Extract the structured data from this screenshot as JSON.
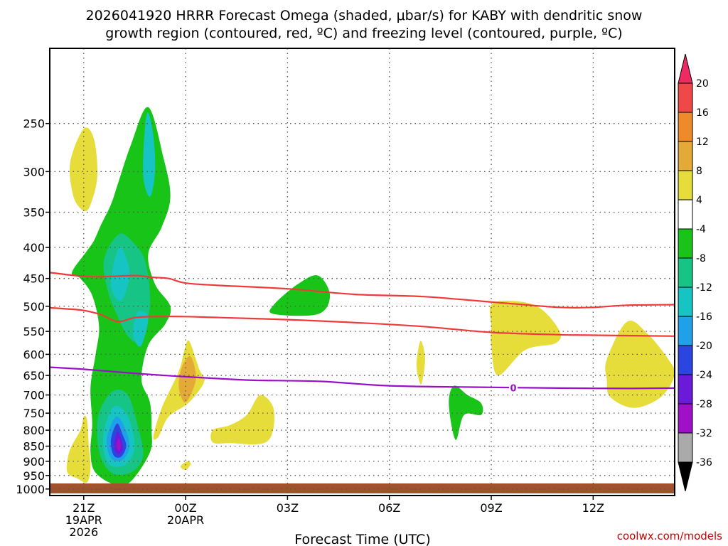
{
  "chart_data": {
    "type": "contour",
    "title_line1": "2026041920 HRRR Forecast Omega (shaded, μbar/s) for KABY with dendritic snow",
    "title_line2": "growth region (contoured, red, ºC) and freezing level (contoured, purple, ºC)",
    "xlabel": "Forecast Time (UTC)",
    "credit": "coolwx.com/models",
    "x_ticks": [
      {
        "hour": 1,
        "label": "21Z",
        "date": "19APR",
        "year": "2026"
      },
      {
        "hour": 4,
        "label": "00Z",
        "date": "20APR",
        "year": ""
      },
      {
        "hour": 7,
        "label": "03Z",
        "date": "",
        "year": ""
      },
      {
        "hour": 10,
        "label": "06Z",
        "date": "",
        "year": ""
      },
      {
        "hour": 13,
        "label": "09Z",
        "date": "",
        "year": ""
      },
      {
        "hour": 16,
        "label": "12Z",
        "date": "",
        "year": ""
      }
    ],
    "xlim": [
      0,
      18.4
    ],
    "y_ticks": [
      250,
      300,
      350,
      400,
      450,
      500,
      550,
      600,
      650,
      700,
      750,
      800,
      850,
      900,
      950,
      1000
    ],
    "ylim": [
      1025,
      188
    ],
    "colorbar": {
      "labels": [
        "20",
        "16",
        "12",
        "8",
        "4",
        "-4",
        "-8",
        "-12",
        "-16",
        "-20",
        "-24",
        "-28",
        "-32",
        "-36"
      ],
      "colors": [
        "#ee2a63",
        "#f04848",
        "#ee8a2a",
        "#e4aa38",
        "#e6dc3a",
        "#ffffff",
        "#17c417",
        "#16c486",
        "#16c4c4",
        "#1fa0e8",
        "#2a45e0",
        "#6a1ad8",
        "#a010c8",
        "#aaaaaa",
        "#000000"
      ]
    },
    "contour_lines": [
      {
        "name": "dendritic-top -12C",
        "color": "#f03a3a",
        "points": [
          [
            0,
            440
          ],
          [
            1.2,
            447
          ],
          [
            2.5,
            445
          ],
          [
            3,
            448
          ],
          [
            3.5,
            450
          ],
          [
            4,
            458
          ],
          [
            5,
            462
          ],
          [
            7,
            468
          ],
          [
            9,
            478
          ],
          [
            11,
            482
          ],
          [
            13,
            492
          ],
          [
            15,
            502
          ],
          [
            16,
            502
          ],
          [
            17,
            498
          ],
          [
            18.4,
            497
          ]
        ]
      },
      {
        "name": "dendritic-bottom -18C",
        "color": "#f03a3a",
        "points": [
          [
            0,
            503
          ],
          [
            0.5,
            505
          ],
          [
            1,
            508
          ],
          [
            1.5,
            516
          ],
          [
            2,
            530
          ],
          [
            2.5,
            522
          ],
          [
            3,
            520
          ],
          [
            4,
            520
          ],
          [
            5,
            522
          ],
          [
            7,
            526
          ],
          [
            9,
            532
          ],
          [
            11,
            540
          ],
          [
            13,
            552
          ],
          [
            15,
            557
          ],
          [
            16,
            558
          ],
          [
            18.4,
            560
          ]
        ]
      },
      {
        "name": "freezing-level 0C",
        "color": "#9a10c8",
        "label": "0",
        "points": [
          [
            0,
            630
          ],
          [
            1,
            635
          ],
          [
            3,
            648
          ],
          [
            5,
            658
          ],
          [
            6,
            662
          ],
          [
            8,
            665
          ],
          [
            10,
            676
          ],
          [
            13,
            680
          ],
          [
            14,
            681
          ],
          [
            15,
            682
          ],
          [
            17,
            683
          ],
          [
            18.4,
            682
          ]
        ]
      }
    ],
    "omega_regions": [
      {
        "value": 4,
        "color": "#e6dc3a",
        "points": [
          [
            0.6,
            290
          ],
          [
            1,
            255
          ],
          [
            1.3,
            265
          ],
          [
            1.4,
            305
          ],
          [
            1.2,
            340
          ],
          [
            1,
            348
          ],
          [
            0.7,
            330
          ]
        ]
      },
      {
        "value": 4,
        "color": "#e6dc3a",
        "points": [
          [
            0.5,
            915
          ],
          [
            0.6,
            860
          ],
          [
            0.9,
            800
          ],
          [
            1,
            760
          ],
          [
            1.1,
            770
          ],
          [
            1.15,
            850
          ],
          [
            1.2,
            920
          ],
          [
            1.1,
            975
          ],
          [
            0.8,
            960
          ],
          [
            0.55,
            945
          ]
        ]
      },
      {
        "value": 4,
        "color": "#e6dc3a",
        "points": [
          [
            3.05,
            820
          ],
          [
            3.3,
            735
          ],
          [
            3.8,
            640
          ],
          [
            3.95,
            595
          ],
          [
            4.1,
            570
          ],
          [
            4.4,
            635
          ],
          [
            4.55,
            665
          ],
          [
            4.1,
            720
          ],
          [
            3.5,
            760
          ],
          [
            3.2,
            820
          ]
        ]
      },
      {
        "value": 4,
        "color": "#e6dc3a",
        "points": [
          [
            3.85,
            918
          ],
          [
            4.05,
            900
          ],
          [
            4.15,
            910
          ],
          [
            4,
            930
          ]
        ]
      },
      {
        "value": 4,
        "color": "#e6dc3a",
        "points": [
          [
            4.8,
            800
          ],
          [
            5.3,
            785
          ],
          [
            5.8,
            755
          ],
          [
            6.2,
            700
          ],
          [
            6.6,
            742
          ],
          [
            6.4,
            835
          ],
          [
            5.3,
            840
          ],
          [
            4.8,
            838
          ]
        ]
      },
      {
        "value": 4,
        "color": "#e6dc3a",
        "points": [
          [
            10.8,
            618
          ],
          [
            10.92,
            570
          ],
          [
            11.05,
            610
          ],
          [
            10.95,
            670
          ],
          [
            10.85,
            655
          ]
        ]
      },
      {
        "value": 4,
        "color": "#e6dc3a",
        "points": [
          [
            13,
            497
          ],
          [
            13.6,
            490
          ],
          [
            14.4,
            502
          ],
          [
            15,
            548
          ],
          [
            14.9,
            575
          ],
          [
            14,
            590
          ],
          [
            13.2,
            650
          ],
          [
            13,
            580
          ],
          [
            13,
            540
          ]
        ]
      },
      {
        "value": 4,
        "color": "#e6dc3a",
        "points": [
          [
            16.4,
            612
          ],
          [
            17,
            530
          ],
          [
            17.6,
            555
          ],
          [
            18.2,
            610
          ],
          [
            18.4,
            648
          ],
          [
            18,
            705
          ],
          [
            17.2,
            735
          ],
          [
            16.5,
            705
          ],
          [
            16.4,
            660
          ]
        ]
      },
      {
        "value": 8,
        "color": "#e4aa38",
        "points": [
          [
            3.8,
            680
          ],
          [
            3.9,
            628
          ],
          [
            4.15,
            605
          ],
          [
            4.3,
            660
          ],
          [
            4,
            720
          ]
        ]
      },
      {
        "value": -4,
        "color": "#17c417",
        "points": [
          [
            0.65,
            440
          ],
          [
            1.1,
            405
          ],
          [
            1.3,
            390
          ],
          [
            1.5,
            368
          ],
          [
            1.8,
            340
          ],
          [
            2,
            315
          ],
          [
            2.4,
            270
          ],
          [
            2.9,
            235
          ],
          [
            3.35,
            285
          ],
          [
            3.55,
            330
          ],
          [
            3.3,
            370
          ],
          [
            2.9,
            410
          ],
          [
            3.1,
            460
          ],
          [
            3.55,
            500
          ],
          [
            3.4,
            535
          ],
          [
            2.9,
            580
          ],
          [
            2.7,
            660
          ],
          [
            2.95,
            720
          ],
          [
            3.0,
            800
          ],
          [
            2.95,
            870
          ],
          [
            2.4,
            970
          ],
          [
            1.95,
            985
          ],
          [
            1.35,
            940
          ],
          [
            1.2,
            870
          ],
          [
            1.25,
            780
          ],
          [
            1.2,
            680
          ],
          [
            1.35,
            600
          ],
          [
            1.45,
            540
          ],
          [
            1.25,
            480
          ],
          [
            0.9,
            450
          ]
        ]
      },
      {
        "value": -4,
        "color": "#17c417",
        "points": [
          [
            6.6,
            497
          ],
          [
            7.3,
            460
          ],
          [
            7.9,
            445
          ],
          [
            8.25,
            480
          ],
          [
            7.9,
            515
          ],
          [
            6.6,
            515
          ]
        ]
      },
      {
        "value": -4,
        "color": "#17c417",
        "points": [
          [
            11.75,
            725
          ],
          [
            11.9,
            676
          ],
          [
            12.3,
            700
          ],
          [
            12.7,
            722
          ],
          [
            12.7,
            755
          ],
          [
            12.2,
            755
          ],
          [
            11.95,
            830
          ]
        ]
      },
      {
        "value": -8,
        "color": "#16c486",
        "points": [
          [
            1.6,
            418
          ],
          [
            2.05,
            380
          ],
          [
            2.5,
            395
          ],
          [
            2.8,
            420
          ],
          [
            2.95,
            475
          ],
          [
            2.9,
            520
          ],
          [
            2.6,
            570
          ],
          [
            2.3,
            560
          ],
          [
            2,
            520
          ],
          [
            1.7,
            470
          ]
        ]
      },
      {
        "value": -8,
        "color": "#16c486",
        "points": [
          [
            1.45,
            750
          ],
          [
            1.85,
            690
          ],
          [
            2.3,
            700
          ],
          [
            2.6,
            790
          ],
          [
            2.75,
            880
          ],
          [
            2.45,
            935
          ],
          [
            1.9,
            945
          ],
          [
            1.55,
            900
          ],
          [
            1.4,
            830
          ]
        ]
      },
      {
        "value": -12,
        "color": "#16c4c4",
        "points": [
          [
            2.75,
            305
          ],
          [
            2.8,
            255
          ],
          [
            2.9,
            240
          ],
          [
            3.05,
            262
          ],
          [
            3.1,
            300
          ],
          [
            2.95,
            330
          ]
        ]
      },
      {
        "value": -12,
        "color": "#16c4c4",
        "points": [
          [
            1.8,
            460
          ],
          [
            2.05,
            400
          ],
          [
            2.35,
            440
          ],
          [
            2.1,
            490
          ]
        ]
      },
      {
        "value": -12,
        "color": "#16c4c4",
        "points": [
          [
            2.45,
            545
          ],
          [
            2.6,
            510
          ],
          [
            2.9,
            522
          ],
          [
            2.7,
            580
          ],
          [
            2.5,
            570
          ]
        ]
      },
      {
        "value": -12,
        "color": "#16c4c4",
        "points": [
          [
            1.6,
            800
          ],
          [
            1.9,
            730
          ],
          [
            2.3,
            760
          ],
          [
            2.5,
            850
          ],
          [
            2.25,
            910
          ],
          [
            1.8,
            915
          ],
          [
            1.6,
            870
          ]
        ]
      },
      {
        "value": -16,
        "color": "#1fa0e8",
        "points": [
          [
            1.7,
            815
          ],
          [
            1.95,
            760
          ],
          [
            2.2,
            790
          ],
          [
            2.35,
            850
          ],
          [
            2.15,
            895
          ],
          [
            1.85,
            895
          ],
          [
            1.7,
            860
          ]
        ]
      },
      {
        "value": -20,
        "color": "#2a45e0",
        "points": [
          [
            1.8,
            830
          ],
          [
            1.98,
            780
          ],
          [
            2.15,
            815
          ],
          [
            2.25,
            850
          ],
          [
            2.1,
            885
          ],
          [
            1.88,
            880
          ]
        ]
      },
      {
        "value": -24,
        "color": "#6a1ad8",
        "points": [
          [
            1.9,
            840
          ],
          [
            2.0,
            805
          ],
          [
            2.12,
            835
          ],
          [
            2.15,
            860
          ],
          [
            2.05,
            875
          ],
          [
            1.92,
            865
          ]
        ]
      },
      {
        "value": -28,
        "color": "#a010c8",
        "points": [
          [
            1.97,
            845
          ],
          [
            2.03,
            825
          ],
          [
            2.09,
            845
          ],
          [
            2.06,
            865
          ],
          [
            1.99,
            860
          ]
        ]
      }
    ]
  }
}
